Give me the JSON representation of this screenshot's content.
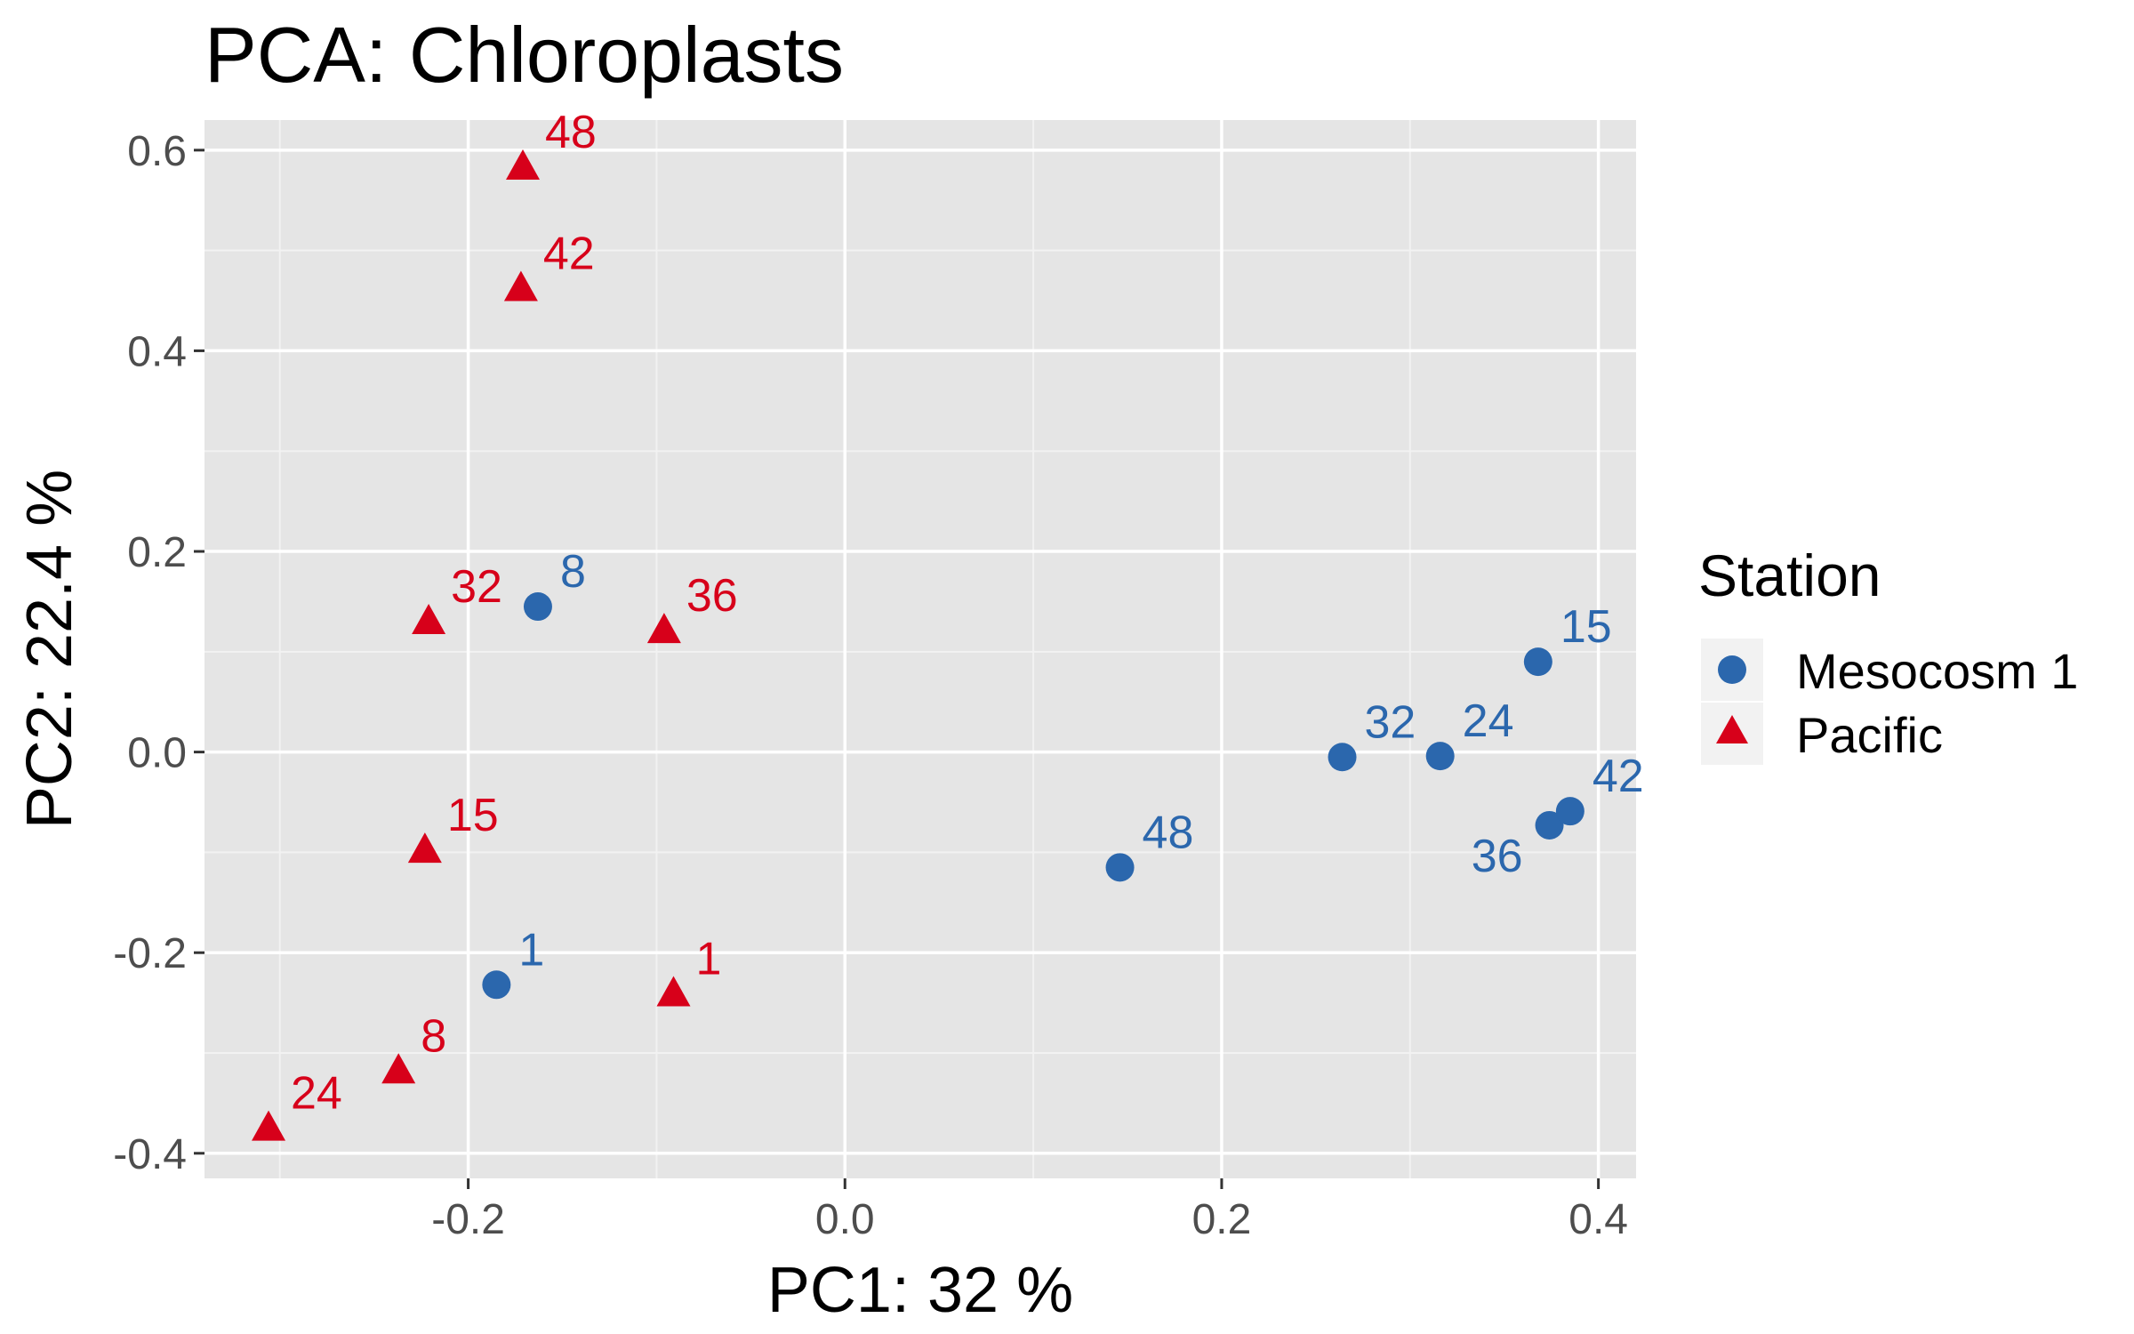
{
  "chart_data": {
    "type": "scatter",
    "title": "PCA: Chloroplasts",
    "xlabel": "PC1:  32 %",
    "ylabel": "PC2:  22.4 %",
    "xlim": [
      -0.34,
      0.42
    ],
    "ylim": [
      -0.425,
      0.63
    ],
    "xticks": [
      -0.2,
      0.0,
      0.2,
      0.4
    ],
    "xtick_labels": [
      "-0.2",
      "0.0",
      "0.2",
      "0.4"
    ],
    "yticks": [
      -0.4,
      -0.2,
      0.0,
      0.2,
      0.4,
      0.6
    ],
    "ytick_labels": [
      "-0.4",
      "-0.2",
      "0.0",
      "0.2",
      "0.4",
      "0.6"
    ],
    "grid": true,
    "background": "#e5e5e5",
    "legend": {
      "title": "Station",
      "placement": "right"
    },
    "series": [
      {
        "name": "Mesocosm 1",
        "marker": "circle",
        "color": "#2b67ad",
        "points": [
          {
            "x": -0.163,
            "y": 0.145,
            "label": "8"
          },
          {
            "x": -0.185,
            "y": -0.232,
            "label": "1"
          },
          {
            "x": 0.146,
            "y": -0.115,
            "label": "48"
          },
          {
            "x": 0.264,
            "y": -0.005,
            "label": "32"
          },
          {
            "x": 0.316,
            "y": -0.004,
            "label": "24"
          },
          {
            "x": 0.368,
            "y": 0.09,
            "label": "15"
          },
          {
            "x": 0.374,
            "y": -0.073,
            "label": "36"
          },
          {
            "x": 0.385,
            "y": -0.059,
            "label": "42"
          }
        ]
      },
      {
        "name": "Pacific",
        "marker": "triangle",
        "color": "#d7001a",
        "points": [
          {
            "x": -0.171,
            "y": 0.583,
            "label": "48"
          },
          {
            "x": -0.172,
            "y": 0.462,
            "label": "42"
          },
          {
            "x": -0.221,
            "y": 0.13,
            "label": "32"
          },
          {
            "x": -0.096,
            "y": 0.121,
            "label": "36"
          },
          {
            "x": -0.223,
            "y": -0.098,
            "label": "15"
          },
          {
            "x": -0.091,
            "y": -0.241,
            "label": "1"
          },
          {
            "x": -0.237,
            "y": -0.318,
            "label": "8"
          },
          {
            "x": -0.306,
            "y": -0.375,
            "label": "24"
          }
        ]
      }
    ]
  }
}
